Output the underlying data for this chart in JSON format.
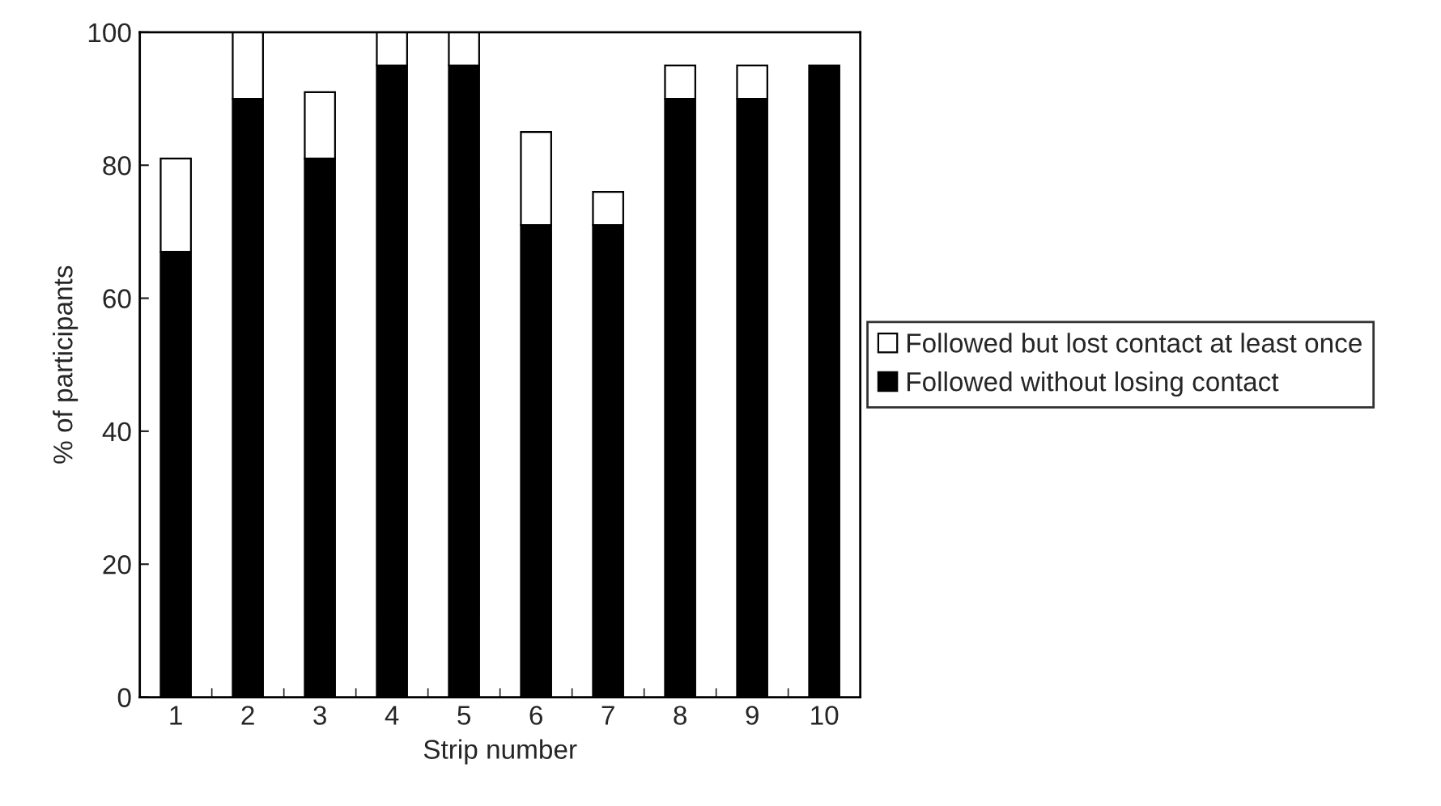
{
  "chart_data": {
    "type": "bar",
    "stacked": true,
    "xlabel": "Strip number",
    "ylabel": "% of participants",
    "categories": [
      "1",
      "2",
      "3",
      "4",
      "5",
      "6",
      "7",
      "8",
      "9",
      "10"
    ],
    "series": [
      {
        "name": "Followed without losing contact",
        "color": "#000000",
        "values": [
          67,
          90,
          81,
          95,
          95,
          71,
          71,
          90,
          90,
          95
        ]
      },
      {
        "name": "Followed but lost contact at least once",
        "color": "#ffffff",
        "values": [
          14,
          10,
          10,
          5,
          5,
          14,
          5,
          5,
          5,
          null
        ]
      }
    ],
    "ylim": [
      0,
      100
    ],
    "yticks": [
      0,
      20,
      40,
      60,
      80,
      100
    ],
    "grid": false,
    "legend": "right"
  }
}
